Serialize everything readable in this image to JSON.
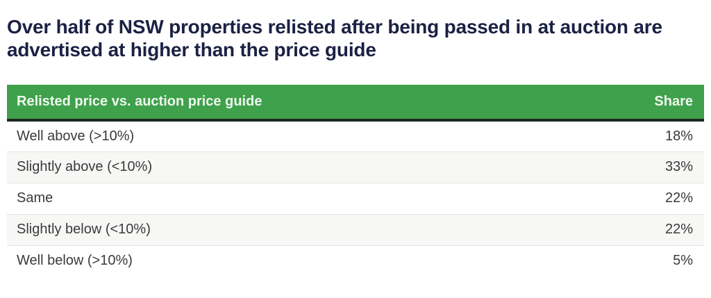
{
  "headline": "Over half of NSW properties relisted after being passed in at auction are advertised at higher than the price guide",
  "table": {
    "columns": {
      "label": "Relisted price vs. auction price guide",
      "share": "Share"
    },
    "rows": [
      {
        "label": "Well above (>10%)",
        "share": "18%"
      },
      {
        "label": "Slightly above (<10%)",
        "share": "33%"
      },
      {
        "label": "Same",
        "share": "22%"
      },
      {
        "label": "Slightly below (<10%)",
        "share": "22%"
      },
      {
        "label": "Well below (>10%)",
        "share": "5%"
      }
    ]
  },
  "colors": {
    "headline_text": "#1b2144",
    "header_background": "#3fa14b",
    "header_text": "#eef8ee",
    "header_bottom_border": "#1c2a20",
    "row_alt_background": "#f7f7f6",
    "row_text": "#3a3a3a",
    "row_divider": "#e3e3e2"
  },
  "chart_data": {
    "type": "table",
    "title": "Over half of NSW properties relisted after being passed in at auction are advertised at higher than the price guide",
    "columns": [
      "Relisted price vs. auction price guide",
      "Share"
    ],
    "categories": [
      "Well above (>10%)",
      "Slightly above (<10%)",
      "Same",
      "Slightly below (<10%)",
      "Well below (>10%)"
    ],
    "values": [
      18,
      33,
      22,
      22,
      5
    ],
    "unit": "%"
  }
}
